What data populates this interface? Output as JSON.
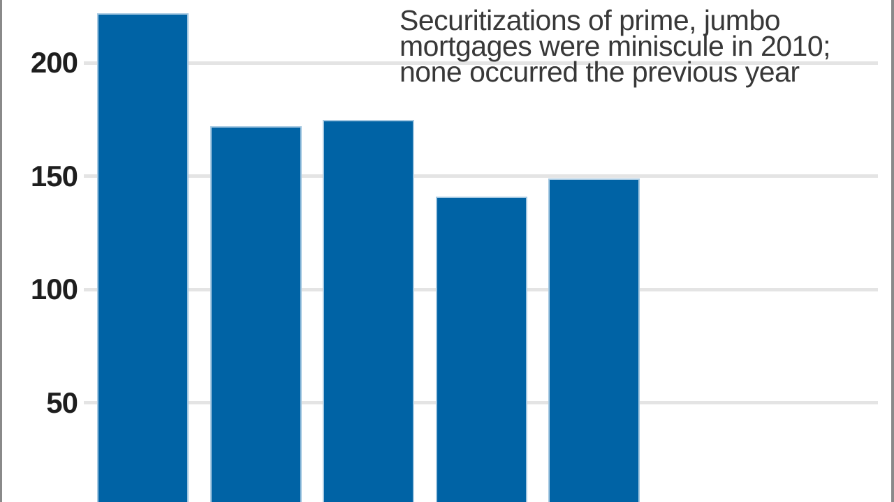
{
  "chart_data": {
    "type": "bar",
    "categories": [
      "",
      "",
      "",
      "",
      ""
    ],
    "values": [
      222,
      172,
      175,
      141,
      149
    ],
    "title": "",
    "xlabel": "",
    "ylabel": "",
    "yticks": [
      200,
      150,
      100,
      50
    ],
    "ylim": [
      0,
      230
    ],
    "grid": true,
    "legend": "none",
    "annotation": {
      "lines": [
        "Securitizations of prime, jumbo",
        "mortgages were miniscule in 2010;",
        "none occurred the previous year"
      ]
    },
    "colors": {
      "bar": "#0063a5",
      "bar_edge": "#a6c9e2",
      "gridline": "#e4e4e4",
      "tick_label": "#1e1e1e",
      "annotation_text": "#383838",
      "frame_border": "#8a8a8a",
      "background": "#ffffff"
    }
  }
}
